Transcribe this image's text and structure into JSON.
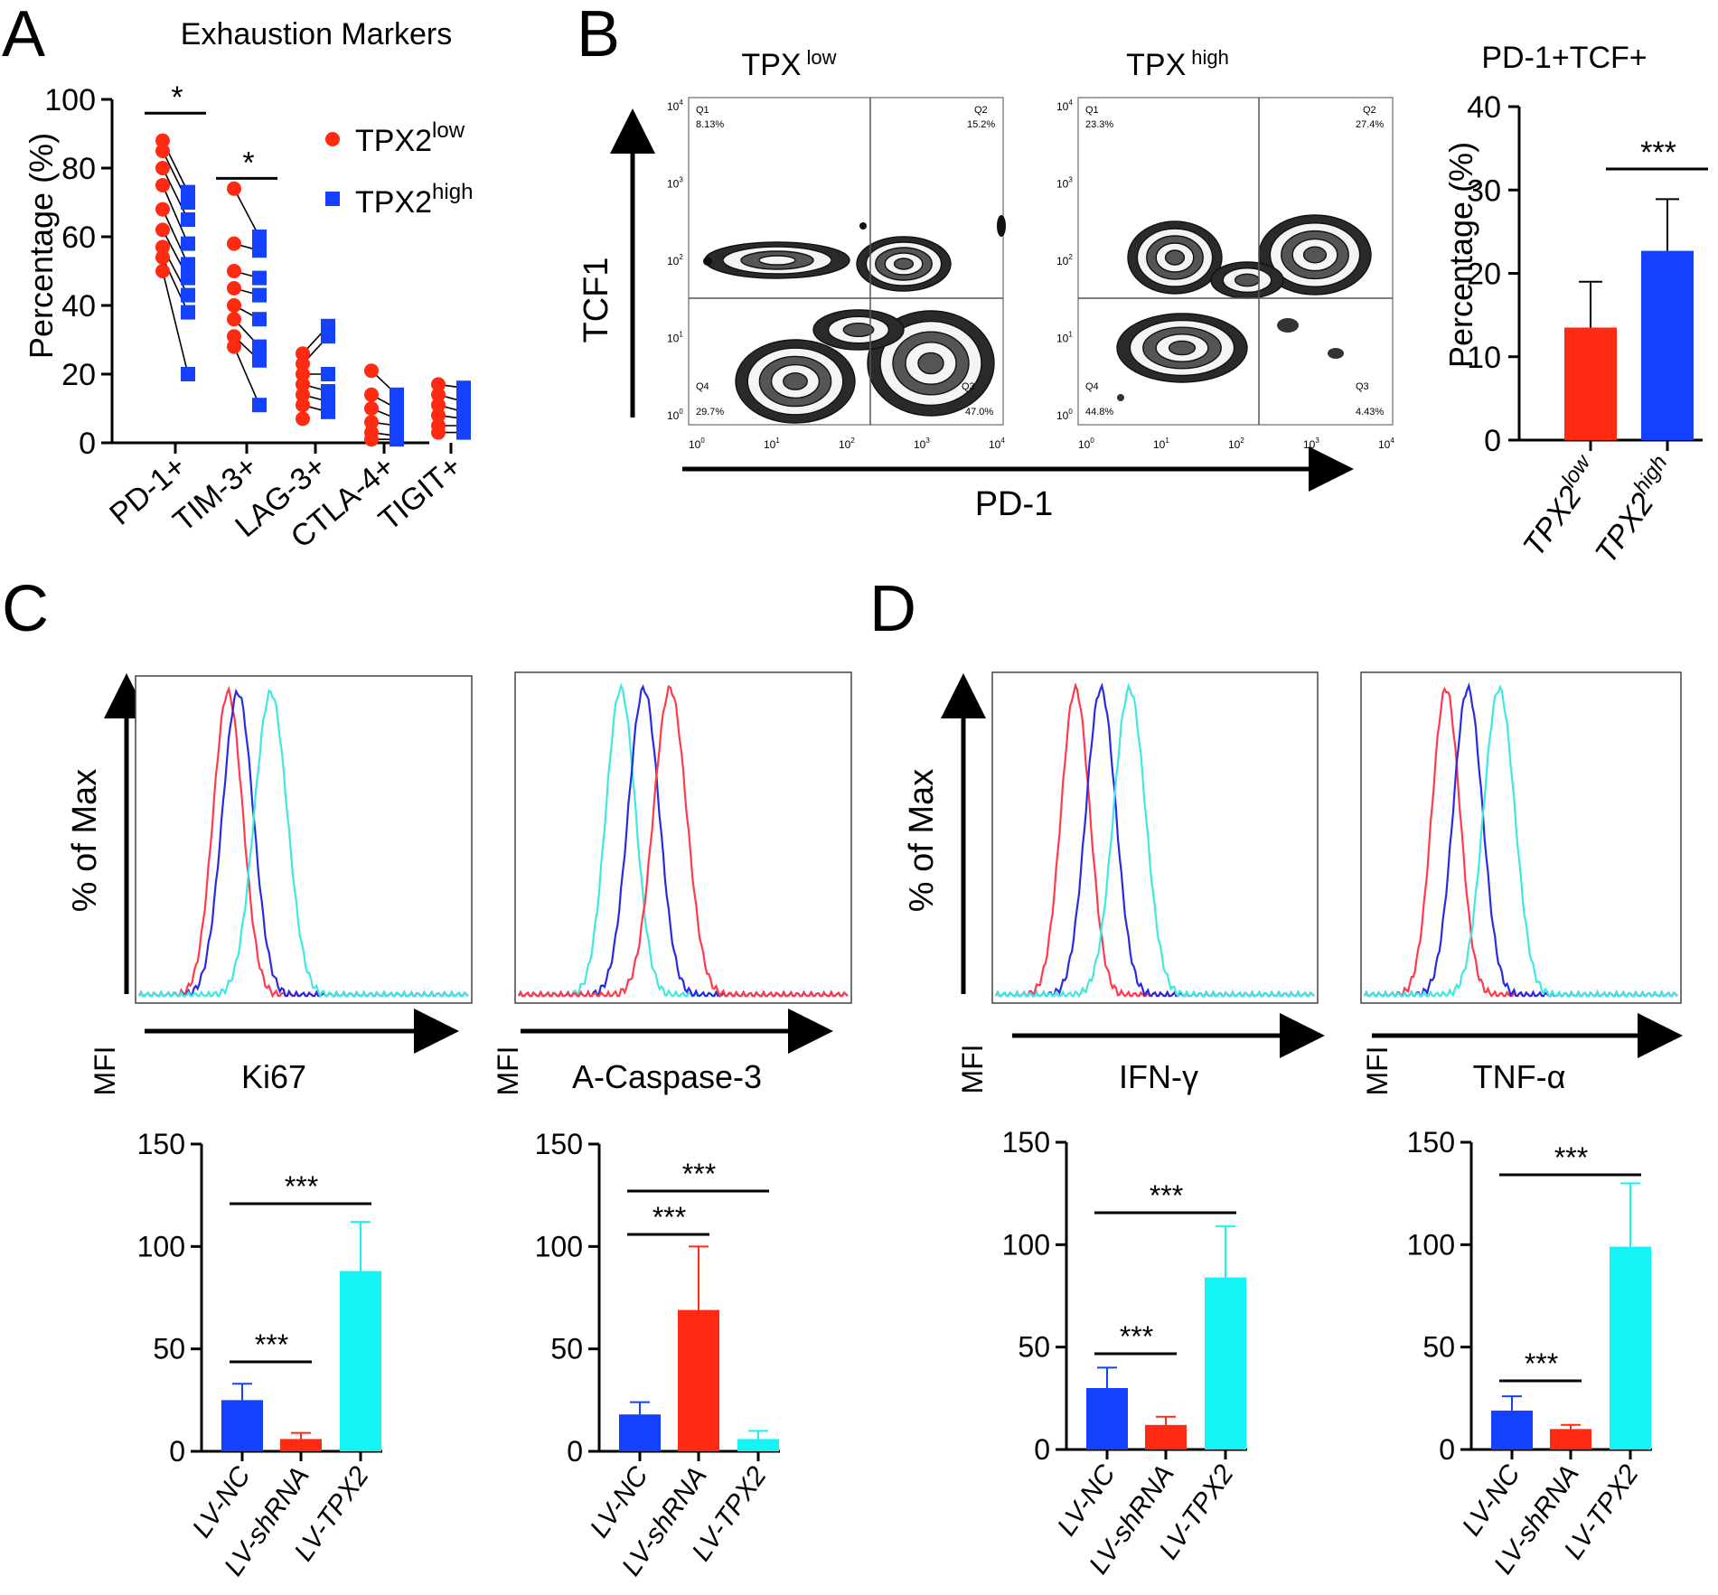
{
  "colors": {
    "red": "#ff2a12",
    "blue": "#1440ff",
    "cyan": "#14f4f4",
    "hist_red": "#ff3a4a",
    "hist_blue": "#2a2ae0",
    "hist_cyan": "#40e8e0",
    "contour": "#222222"
  },
  "panels": {
    "A": {
      "letter": "A"
    },
    "B": {
      "letter": "B",
      "flow_left_title": "TPX",
      "flow_left_sup": "low",
      "flow_right_title": "TPX",
      "flow_right_sup": "high",
      "y_axis_label": "TCF1",
      "x_axis_label": "PD-1",
      "tick_base": "10",
      "y_ticks": [
        "4",
        "3",
        "2",
        "1",
        "0"
      ],
      "x_ticks": [
        "0",
        "1",
        "2",
        "3",
        "4"
      ],
      "left_quadrants": {
        "q1": "Q1",
        "q1_val": "8.13%",
        "q2": "Q2",
        "q2_val": "15.2%",
        "q3": "Q3",
        "q3_val": "47.0%",
        "q4": "Q4",
        "q4_val": "29.7%"
      },
      "right_quadrants": {
        "q1": "Q1",
        "q1_val": "23.3%",
        "q2": "Q2",
        "q2_val": "27.4%",
        "q3": "Q3",
        "q3_val": "4.43%",
        "q4": "Q4",
        "q4_val": "44.8%"
      }
    },
    "C": {
      "letter": "C"
    },
    "D": {
      "letter": "D"
    },
    "histograms": {
      "y_label": "% of Max",
      "ki67": {
        "label": "Ki67"
      },
      "caspase": {
        "label": "A-Caspase-3"
      },
      "ifng": {
        "label": "IFN-γ"
      },
      "tnfa": {
        "label": "TNF-α"
      }
    }
  },
  "chart_data": [
    {
      "id": "exhaustion",
      "type": "scatter",
      "title": "Exhaustion Markers",
      "ylabel": "Percentage (%)",
      "ylim": [
        0,
        100
      ],
      "yticks": [
        "0",
        "20",
        "40",
        "60",
        "80",
        "100"
      ],
      "categories": [
        "PD-1+",
        "TIM-3+",
        "LAG-3+",
        "CTLA-4+",
        "TIGIT+"
      ],
      "legend": [
        {
          "base": "TPX2",
          "sup": "low",
          "color": "#ff2a12",
          "marker": "circle"
        },
        {
          "base": "TPX2",
          "sup": "high",
          "color": "#1440ff",
          "marker": "square"
        }
      ],
      "series": [
        {
          "name": "TPX2low",
          "values": [
            [
              88,
              85,
              80,
              75,
              68,
              62,
              57,
              54,
              50
            ],
            [
              74,
              58,
              50,
              45,
              40,
              36,
              31,
              28
            ],
            [
              26,
              23,
              20,
              17,
              14,
              11,
              7
            ],
            [
              21,
              14,
              10,
              6,
              3,
              1
            ],
            [
              17,
              14,
              11,
              8,
              5,
              3
            ]
          ]
        },
        {
          "name": "TPX2high",
          "values": [
            [
              73,
              70,
              65,
              58,
              52,
              48,
              43,
              38,
              20
            ],
            [
              60,
              56,
              48,
              43,
              36,
              28,
              24,
              11
            ],
            [
              34,
              31,
              20,
              15,
              12,
              9
            ],
            [
              14,
              10,
              7,
              5,
              2,
              1
            ],
            [
              16,
              12,
              9,
              7,
              5,
              3
            ]
          ]
        }
      ],
      "significance": [
        {
          "category": "PD-1+",
          "label": "*"
        },
        {
          "category": "TIM-3+",
          "label": "*"
        }
      ]
    },
    {
      "id": "pd1tcf",
      "type": "bar",
      "title": "PD-1+TCF+",
      "ylabel": "Percentage (%)",
      "ylim": [
        0,
        40
      ],
      "yticks": [
        "0",
        "10",
        "20",
        "30",
        "40"
      ],
      "categories": [
        {
          "base": "TPX2",
          "sup": "low"
        },
        {
          "base": "TPX2",
          "sup": "high"
        }
      ],
      "values": [
        13.5,
        22.7
      ],
      "errors": [
        5.5,
        6.2
      ],
      "significance": [
        {
          "pair": "TPX2low-TPX2high",
          "label": "***"
        }
      ]
    },
    {
      "id": "ki67_mfi",
      "type": "bar",
      "ylabel": "MFI",
      "ylim": [
        0,
        150
      ],
      "yticks": [
        "0",
        "50",
        "100",
        "150"
      ],
      "categories": [
        {
          "pre": "LV-",
          "base": "NC"
        },
        {
          "pre": "LV-",
          "base": "shRNA"
        },
        {
          "pre": "LV-",
          "base": "TPX2"
        }
      ],
      "values": [
        25,
        6,
        88
      ],
      "errors": [
        8,
        3,
        24
      ],
      "significance": [
        {
          "pair": "LV-NC vs LV-shRNA",
          "label": "***"
        },
        {
          "pair": "LV-NC vs LV-TPX2",
          "label": "***"
        }
      ]
    },
    {
      "id": "caspase_mfi",
      "type": "bar",
      "ylabel": "MFI",
      "ylim": [
        0,
        150
      ],
      "yticks": [
        "0",
        "50",
        "100",
        "150"
      ],
      "categories": [
        {
          "pre": "LV-",
          "base": "NC"
        },
        {
          "pre": "LV-",
          "base": "shRNA"
        },
        {
          "pre": "LV-",
          "base": "TPX2"
        }
      ],
      "values": [
        18,
        69,
        6
      ],
      "errors": [
        6,
        31,
        4
      ],
      "significance": [
        {
          "pair": "LV-NC vs LV-shRNA",
          "label": "***"
        },
        {
          "pair": "LV-NC vs LV-TPX2",
          "label": "***"
        }
      ]
    },
    {
      "id": "ifng_mfi",
      "type": "bar",
      "ylabel": "MFI",
      "ylim": [
        0,
        150
      ],
      "yticks": [
        "0",
        "50",
        "100",
        "150"
      ],
      "categories": [
        {
          "pre": "LV-",
          "base": "NC"
        },
        {
          "pre": "LV-",
          "base": "shRNA"
        },
        {
          "pre": "LV-",
          "base": "TPX2"
        }
      ],
      "values": [
        30,
        12,
        84
      ],
      "errors": [
        10,
        4,
        25
      ],
      "significance": [
        {
          "pair": "LV-NC vs LV-shRNA",
          "label": "***"
        },
        {
          "pair": "LV-NC vs LV-TPX2",
          "label": "***"
        }
      ]
    },
    {
      "id": "tnfa_mfi",
      "type": "bar",
      "ylabel": "MFI",
      "ylim": [
        0,
        150
      ],
      "yticks": [
        "0",
        "50",
        "100",
        "150"
      ],
      "categories": [
        {
          "pre": "LV-",
          "base": "NC"
        },
        {
          "pre": "LV-",
          "base": "shRNA"
        },
        {
          "pre": "LV-",
          "base": "TPX2"
        }
      ],
      "values": [
        19,
        10,
        99
      ],
      "errors": [
        7,
        2,
        31
      ],
      "significance": [
        {
          "pair": "LV-NC vs LV-shRNA",
          "label": "***"
        },
        {
          "pair": "LV-NC vs LV-TPX2",
          "label": "***"
        }
      ]
    },
    {
      "id": "hist_ki67",
      "type": "line",
      "title": "Ki67",
      "series": [
        {
          "name": "LV-shRNA",
          "color": "#ff3a4a",
          "peak": 0.27,
          "width": 0.045
        },
        {
          "name": "LV-NC",
          "color": "#2a2ae0",
          "peak": 0.3,
          "width": 0.047
        },
        {
          "name": "LV-TPX2",
          "color": "#40e8e0",
          "peak": 0.4,
          "width": 0.05
        }
      ]
    },
    {
      "id": "hist_caspase",
      "type": "line",
      "title": "A-Caspase-3",
      "series": [
        {
          "name": "LV-TPX2",
          "color": "#40e8e0",
          "peak": 0.31,
          "width": 0.045
        },
        {
          "name": "LV-NC",
          "color": "#2a2ae0",
          "peak": 0.38,
          "width": 0.047
        },
        {
          "name": "LV-shRNA",
          "color": "#ff3a4a",
          "peak": 0.46,
          "width": 0.05
        }
      ]
    },
    {
      "id": "hist_ifng",
      "type": "line",
      "title": "IFN-γ",
      "series": [
        {
          "name": "LV-shRNA",
          "color": "#ff3a4a",
          "peak": 0.25,
          "width": 0.045
        },
        {
          "name": "LV-NC",
          "color": "#2a2ae0",
          "peak": 0.33,
          "width": 0.047
        },
        {
          "name": "LV-TPX2",
          "color": "#40e8e0",
          "peak": 0.42,
          "width": 0.05
        }
      ]
    },
    {
      "id": "hist_tnfa",
      "type": "line",
      "title": "TNF-α",
      "series": [
        {
          "name": "LV-shRNA",
          "color": "#ff3a4a",
          "peak": 0.26,
          "width": 0.045
        },
        {
          "name": "LV-NC",
          "color": "#2a2ae0",
          "peak": 0.33,
          "width": 0.047
        },
        {
          "name": "LV-TPX2",
          "color": "#40e8e0",
          "peak": 0.43,
          "width": 0.05
        }
      ]
    }
  ]
}
